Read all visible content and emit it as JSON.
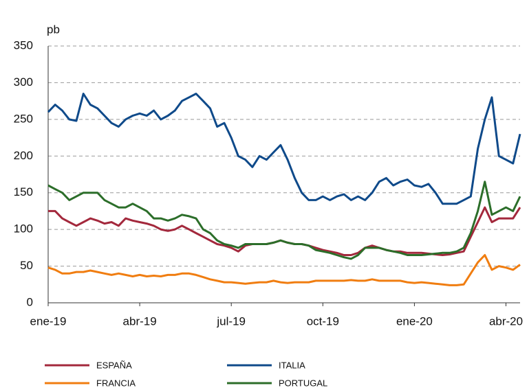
{
  "chart_data": {
    "type": "line",
    "y_unit": "pb",
    "categories": [
      "ene-19",
      null,
      null,
      null,
      null,
      null,
      null,
      null,
      null,
      null,
      null,
      null,
      null,
      "abr-19",
      null,
      null,
      null,
      null,
      null,
      null,
      null,
      null,
      null,
      null,
      null,
      null,
      "jul-19",
      null,
      null,
      null,
      null,
      null,
      null,
      null,
      null,
      null,
      null,
      null,
      null,
      "oct-19",
      null,
      null,
      null,
      null,
      null,
      null,
      null,
      null,
      null,
      null,
      null,
      null,
      "ene-20",
      null,
      null,
      null,
      null,
      null,
      null,
      null,
      null,
      null,
      null,
      null,
      null,
      "abr-20",
      null,
      null
    ],
    "series": [
      {
        "name": "ESPAÑA",
        "color": "#a3283c",
        "values": [
          125,
          125,
          115,
          110,
          105,
          110,
          115,
          112,
          108,
          110,
          105,
          115,
          112,
          110,
          108,
          105,
          100,
          98,
          100,
          105,
          100,
          95,
          90,
          85,
          80,
          78,
          75,
          70,
          78,
          80,
          80,
          80,
          82,
          85,
          82,
          80,
          80,
          78,
          75,
          72,
          70,
          68,
          65,
          65,
          68,
          75,
          78,
          75,
          72,
          70,
          70,
          68,
          68,
          68,
          67,
          66,
          65,
          66,
          68,
          70,
          90,
          110,
          130,
          110,
          115,
          115,
          115,
          130
        ]
      },
      {
        "name": "ITALIA",
        "color": "#0f4a8a",
        "values": [
          260,
          270,
          262,
          250,
          248,
          285,
          270,
          265,
          255,
          245,
          240,
          250,
          255,
          258,
          255,
          262,
          250,
          255,
          262,
          275,
          280,
          285,
          275,
          265,
          240,
          245,
          225,
          200,
          195,
          185,
          200,
          195,
          205,
          215,
          195,
          170,
          150,
          140,
          140,
          145,
          140,
          145,
          148,
          140,
          145,
          140,
          150,
          165,
          170,
          160,
          165,
          168,
          160,
          158,
          162,
          150,
          135,
          135,
          135,
          140,
          145,
          210,
          250,
          280,
          200,
          195,
          190,
          230
        ]
      },
      {
        "name": "FRANCIA",
        "color": "#f07d10",
        "values": [
          48,
          45,
          40,
          40,
          42,
          42,
          44,
          42,
          40,
          38,
          40,
          38,
          36,
          38,
          36,
          37,
          36,
          38,
          38,
          40,
          40,
          38,
          35,
          32,
          30,
          28,
          28,
          27,
          26,
          27,
          28,
          28,
          30,
          28,
          27,
          28,
          28,
          28,
          30,
          30,
          30,
          30,
          30,
          31,
          30,
          30,
          32,
          30,
          30,
          30,
          30,
          28,
          27,
          28,
          27,
          26,
          25,
          24,
          24,
          25,
          40,
          55,
          65,
          45,
          50,
          48,
          45,
          52
        ]
      },
      {
        "name": "PORTUGAL",
        "color": "#2c6e2a",
        "values": [
          160,
          155,
          150,
          140,
          145,
          150,
          150,
          150,
          140,
          135,
          130,
          130,
          135,
          130,
          125,
          115,
          115,
          112,
          115,
          120,
          118,
          115,
          100,
          95,
          85,
          80,
          78,
          75,
          80,
          80,
          80,
          80,
          82,
          85,
          82,
          80,
          80,
          78,
          72,
          70,
          68,
          65,
          62,
          60,
          65,
          75,
          75,
          75,
          72,
          70,
          68,
          65,
          65,
          65,
          66,
          67,
          68,
          68,
          70,
          75,
          95,
          125,
          165,
          120,
          125,
          130,
          125,
          145
        ]
      }
    ],
    "ylim": [
      0,
      350
    ],
    "yticks": [
      0,
      50,
      100,
      150,
      200,
      250,
      300,
      350
    ],
    "grid": true
  }
}
